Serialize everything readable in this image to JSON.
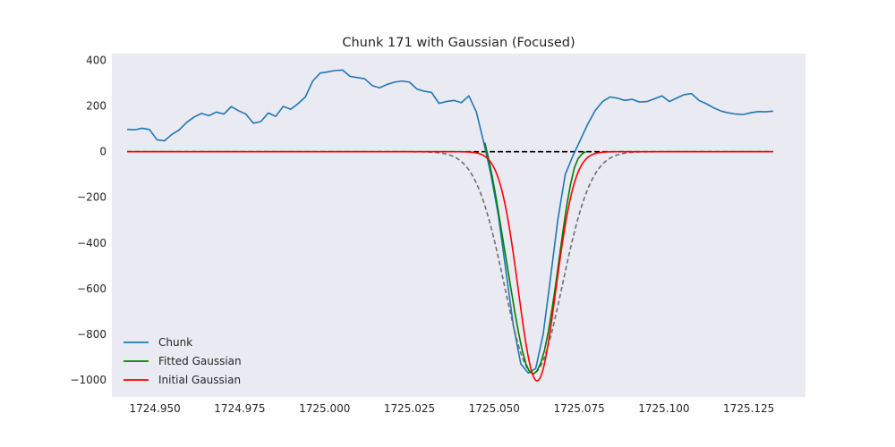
{
  "chart_data": {
    "type": "line",
    "title": "Chunk 171 with Gaussian (Focused)",
    "xlabel": "",
    "ylabel": "",
    "xlim": [
      1724.9373,
      1725.1417
    ],
    "ylim": [
      -1075,
      430
    ],
    "grid": false,
    "background": "#eaeaf2",
    "legend_position": "lower-left",
    "xticks": [
      1724.95,
      1724.975,
      1725.0,
      1725.025,
      1725.05,
      1725.075,
      1725.1,
      1725.125
    ],
    "xtick_labels": [
      "1724.950",
      "1724.975",
      "1725.000",
      "1725.025",
      "1725.050",
      "1725.075",
      "1725.100",
      "1725.125"
    ],
    "yticks": [
      400,
      200,
      0,
      -200,
      -400,
      -600,
      -800,
      -1000
    ],
    "ytick_labels": [
      "400",
      "200",
      "0",
      "−200",
      "−400",
      "−600",
      "−800",
      "−1000"
    ],
    "series": [
      {
        "name": "Chunk",
        "color": "#1f77b4",
        "style": "solid",
        "x": [
          1724.9418,
          1724.944,
          1724.9462,
          1724.9484,
          1724.9506,
          1724.9528,
          1724.9549,
          1724.9571,
          1724.9593,
          1724.9615,
          1724.9637,
          1724.9659,
          1724.9681,
          1724.9703,
          1724.9725,
          1724.9746,
          1724.9768,
          1724.979,
          1724.9812,
          1724.9834,
          1724.9856,
          1724.9878,
          1724.99,
          1724.9921,
          1724.9943,
          1724.9965,
          1724.9987,
          1725.0009,
          1725.0031,
          1725.0053,
          1725.0075,
          1725.0097,
          1725.0118,
          1725.014,
          1725.0162,
          1725.0184,
          1725.0206,
          1725.0228,
          1725.025,
          1725.0272,
          1725.0294,
          1725.0315,
          1725.0337,
          1725.0359,
          1725.0381,
          1725.0403,
          1725.0425,
          1725.0447,
          1725.0469,
          1725.049,
          1725.0512,
          1725.0534,
          1725.0556,
          1725.0578,
          1725.06,
          1725.0622,
          1725.0644,
          1725.0665,
          1725.0687,
          1725.0709,
          1725.0731,
          1725.0753,
          1725.0775,
          1725.0797,
          1725.0819,
          1725.0841,
          1725.0862,
          1725.0884,
          1725.0906,
          1725.0928,
          1725.095,
          1725.0972,
          1725.0994,
          1725.1016,
          1725.1037,
          1725.1059,
          1725.1081,
          1725.1103,
          1725.1125,
          1725.1147,
          1725.1169,
          1725.1191,
          1725.1212,
          1725.1234,
          1725.1256,
          1725.1278,
          1725.13,
          1725.1322
        ],
        "y": [
          98,
          96,
          103,
          97,
          52,
          48,
          75,
          95,
          128,
          152,
          168,
          158,
          174,
          165,
          198,
          180,
          165,
          125,
          132,
          170,
          155,
          199,
          186,
          210,
          240,
          310,
          345,
          350,
          356,
          358,
          330,
          325,
          320,
          290,
          280,
          295,
          305,
          310,
          305,
          275,
          265,
          260,
          212,
          220,
          225,
          215,
          245,
          175,
          40,
          -100,
          -280,
          -520,
          -760,
          -930,
          -970,
          -950,
          -800,
          -560,
          -300,
          -100,
          -20,
          50,
          120,
          180,
          220,
          240,
          235,
          225,
          230,
          218,
          220,
          232,
          245,
          220,
          235,
          250,
          255,
          225,
          210,
          192,
          178,
          170,
          165,
          163,
          171,
          176,
          175,
          178
        ]
      },
      {
        "name": "Fitted Gaussian",
        "color": "#008000",
        "style": "solid",
        "x": [
          1725.0472,
          1725.0483,
          1725.0494,
          1725.0505,
          1725.0516,
          1725.0527,
          1725.0538,
          1725.0549,
          1725.056,
          1725.0571,
          1725.0582,
          1725.0593,
          1725.0604,
          1725.0615,
          1725.0626,
          1725.0637,
          1725.0648,
          1725.0659,
          1725.067,
          1725.0681,
          1725.0692,
          1725.0703,
          1725.0714,
          1725.0725,
          1725.0736,
          1725.0747,
          1725.0758,
          1725.0769
        ],
        "y": [
          40,
          -30,
          -110,
          -200,
          -300,
          -400,
          -500,
          -600,
          -700,
          -790,
          -870,
          -930,
          -965,
          -975,
          -960,
          -925,
          -870,
          -790,
          -690,
          -580,
          -460,
          -340,
          -230,
          -140,
          -70,
          -30,
          -10,
          0
        ]
      },
      {
        "name": "Initial Gaussian",
        "color": "#ff0000",
        "style": "solid",
        "gaussian": {
          "amplitude": -1005,
          "mean": 1725.0626,
          "sigma": 0.0055
        },
        "x_range": [
          1724.9418,
          1725.1322
        ]
      },
      {
        "name": "",
        "color": "#6e6e6e",
        "style": "dashed",
        "gaussian": {
          "amplitude": -970,
          "mean": 1725.0615,
          "sigma": 0.0085
        },
        "x_range": [
          1724.9418,
          1725.1322
        ]
      },
      {
        "name": "",
        "color": "#000000",
        "style": "dashed",
        "constant": 0,
        "x_range": [
          1724.9418,
          1725.1322
        ]
      }
    ]
  }
}
